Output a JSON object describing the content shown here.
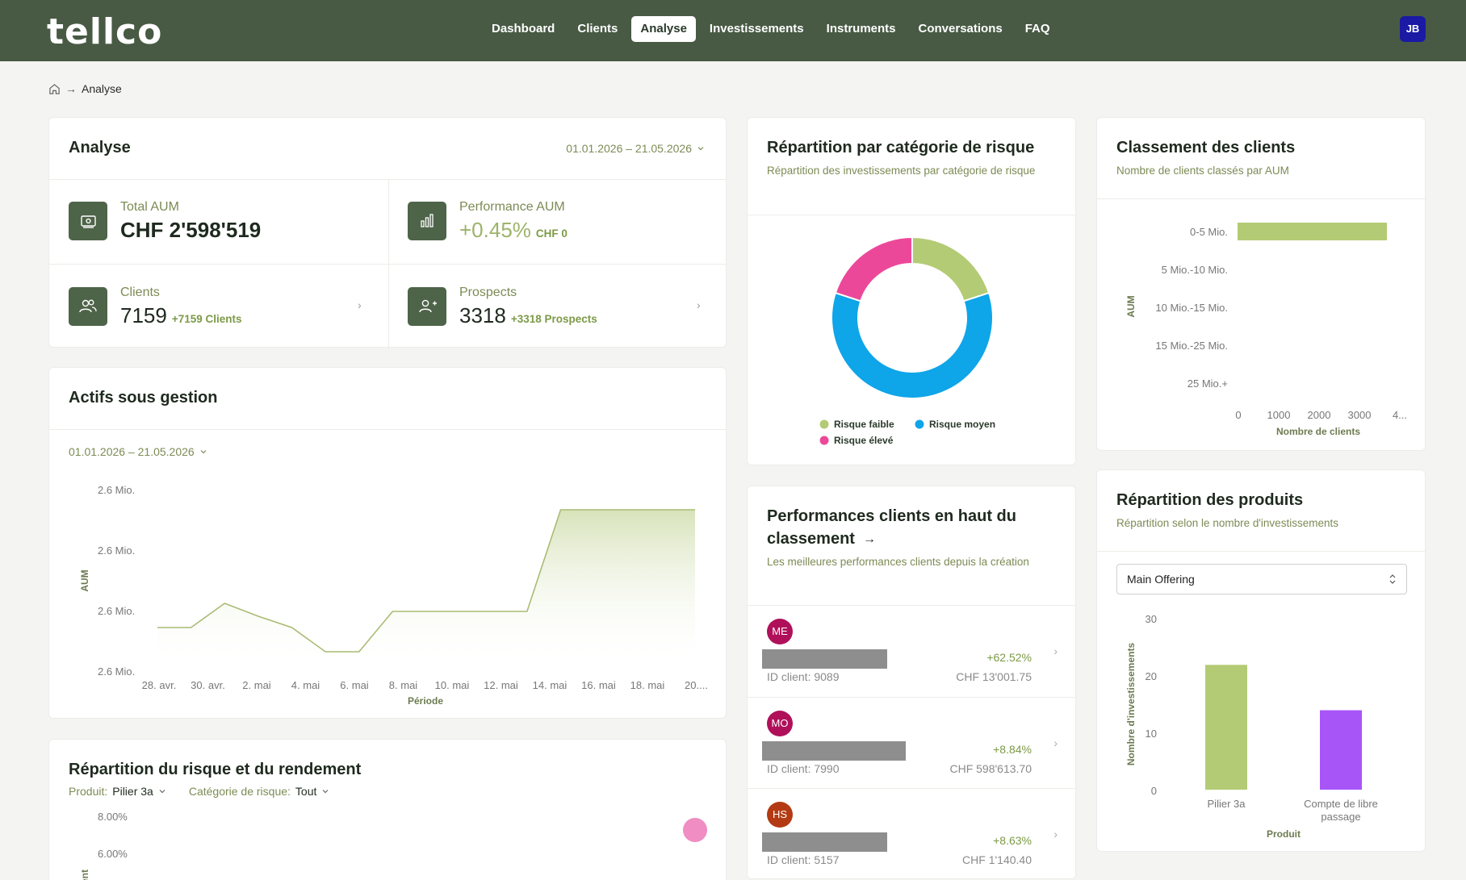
{
  "app": {
    "logo": "tellco",
    "user_initials": "JB"
  },
  "nav": [
    {
      "label": "Dashboard",
      "active": false
    },
    {
      "label": "Clients",
      "active": false
    },
    {
      "label": "Analyse",
      "active": true
    },
    {
      "label": "Investissements",
      "active": false
    },
    {
      "label": "Instruments",
      "active": false
    },
    {
      "label": "Conversations",
      "active": false
    },
    {
      "label": "FAQ",
      "active": false
    }
  ],
  "breadcrumb": {
    "home_icon": "home-icon",
    "separator": "→",
    "current": "Analyse"
  },
  "analyse": {
    "title": "Analyse",
    "date_range": "01.01.2026 – 21.05.2026",
    "kpis": {
      "total_aum": {
        "label": "Total AUM",
        "value": "CHF 2'598'519",
        "icon": "money-icon"
      },
      "performance": {
        "label": "Performance AUM",
        "value": "+0.45%",
        "extra": "CHF 0",
        "icon": "bar-chart-icon"
      },
      "clients": {
        "label": "Clients",
        "value": "7159",
        "extra": "+7159 Clients",
        "icon": "users-icon"
      },
      "prospects": {
        "label": "Prospects",
        "value": "3318",
        "extra": "+3318 Prospects",
        "icon": "user-plus-icon"
      }
    }
  },
  "aum_card": {
    "title": "Actifs sous gestion",
    "date_range": "01.01.2026 – 21.05.2026",
    "chart_data": {
      "type": "area",
      "x": [
        "26. avr.",
        "28. avr.",
        "30. avr.",
        "1. mai",
        "2. mai",
        "4. mai",
        "6. mai",
        "7. mai",
        "8. mai",
        "10. mai",
        "12. mai",
        "14. mai",
        "15. mai",
        "16. mai",
        "18. mai",
        "20. mai",
        "21. mai"
      ],
      "y": [
        0.25,
        0.25,
        0.4,
        0.32,
        0.25,
        0.1,
        0.1,
        0.35,
        0.35,
        0.35,
        0.35,
        0.35,
        0.98,
        0.98,
        0.98,
        0.98,
        0.98
      ],
      "tick_labels_x": [
        "28. avr.",
        "30. avr.",
        "2. mai",
        "4. mai",
        "6. mai",
        "8. mai",
        "10. mai",
        "12. mai",
        "14. mai",
        "16. mai",
        "18. mai",
        "20...."
      ],
      "tick_labels_y": [
        "2.6 Mio.",
        "2.6 Mio.",
        "2.6 Mio.",
        "2.6 Mio."
      ],
      "xlabel": "Période",
      "ylabel": "AUM",
      "color": "#a9bb74"
    }
  },
  "risk_return": {
    "title": "Répartition du risque et du rendement",
    "produit_label": "Produit:",
    "produit_value": "Pilier 3a",
    "categorie_label": "Catégorie de risque:",
    "categorie_value": "Tout",
    "chart_data": {
      "type": "scatter",
      "tick_labels_y": [
        "8.00%",
        "6.00%"
      ],
      "ylabel": "ent",
      "point_color": "#f08dc2"
    }
  },
  "risk_category": {
    "title": "Répartition par catégorie de risque",
    "subtitle": "Répartition des investissements par catégorie de risque",
    "chart_data": {
      "type": "pie",
      "labels": [
        "Risque faible",
        "Risque moyen",
        "Risque élevé"
      ],
      "values": [
        20,
        60,
        20
      ],
      "colors": [
        "#b3cb74",
        "#0ea5e9",
        "#ec4899"
      ]
    }
  },
  "client_rank": {
    "title": "Classement des clients",
    "subtitle": "Nombre de clients classés par AUM",
    "chart_data": {
      "type": "bar",
      "categories": [
        "0-5 Mio.",
        "5 Mio.-10 Mio.",
        "10 Mio.-15 Mio.",
        "15 Mio.-25 Mio.",
        "25 Mio.+"
      ],
      "values": [
        3700,
        0,
        0,
        0,
        0
      ],
      "tick_labels_x": [
        "0",
        "1000",
        "2000",
        "3000",
        "4..."
      ],
      "xlim": [
        0,
        4000
      ],
      "xlabel": "Nombre de clients",
      "ylabel": "AUM",
      "color": "#b3cb74"
    }
  },
  "top_perf": {
    "title_line1": "Performances clients en haut du",
    "title_line2": "classement",
    "arrow": "→",
    "subtitle": "Les meilleures performances clients depuis la création",
    "rows": [
      {
        "initials": "ME",
        "color": "#b0105a",
        "bar_fraction": 0.87,
        "id": "ID client: 9089",
        "pct": "+62.52%",
        "chf": "CHF 13'001.75"
      },
      {
        "initials": "MO",
        "color": "#b0105a",
        "bar_fraction": 1.0,
        "id": "ID client: 7990",
        "pct": "+8.84%",
        "chf": "CHF 598'613.70"
      },
      {
        "initials": "HS",
        "color": "#b33a12",
        "bar_fraction": 0.87,
        "id": "ID client: 5157",
        "pct": "+8.63%",
        "chf": "CHF 1'140.40"
      }
    ]
  },
  "products": {
    "title": "Répartition des produits",
    "subtitle": "Répartition selon le nombre d'investissements",
    "select_value": "Main Offering",
    "chart_data": {
      "type": "bar",
      "categories": [
        "Pilier 3a",
        "Compte de libre passage"
      ],
      "category_lines": [
        [
          "Pilier 3a"
        ],
        [
          "Compte de libre",
          "passage"
        ]
      ],
      "values": [
        22,
        14
      ],
      "ylim": [
        0,
        30
      ],
      "tick_labels_y": [
        "30",
        "20",
        "10",
        "0"
      ],
      "xlabel": "Produit",
      "ylabel": "Nombre d'investissements",
      "colors": [
        "#b3cb74",
        "#a855f7"
      ]
    }
  }
}
